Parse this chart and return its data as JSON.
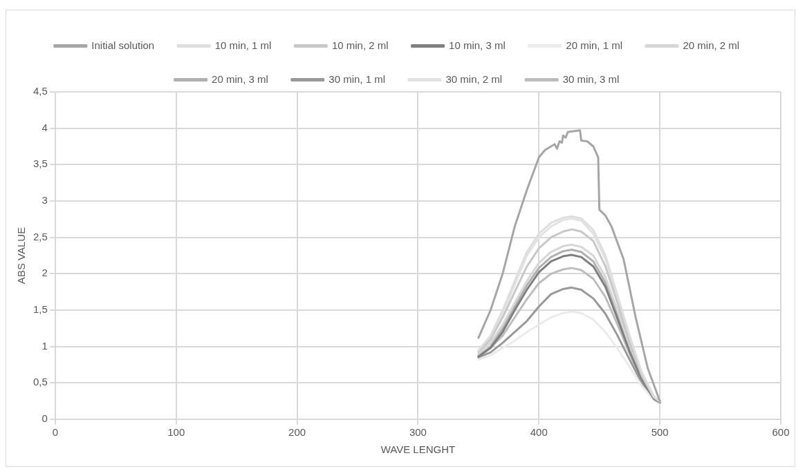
{
  "chart_data": {
    "type": "line",
    "xlabel": "WAVE LENGHT",
    "ylabel": "ABS VALUE",
    "x": [
      350,
      360,
      370,
      380,
      390,
      400,
      410,
      420,
      427,
      435,
      445,
      455,
      465,
      475,
      485,
      495,
      500
    ],
    "xlim": [
      0,
      600
    ],
    "xticks": [
      0,
      100,
      200,
      300,
      400,
      500,
      600
    ],
    "ylim": [
      0,
      4.5
    ],
    "yticks": [
      0,
      {
        "value": 0.5,
        "label": "0,5"
      },
      1,
      {
        "value": 1.5,
        "label": "1,5"
      },
      2,
      {
        "value": 2.5,
        "label": "2,5"
      },
      3,
      {
        "value": 3.5,
        "label": "3,5"
      },
      4,
      {
        "value": 4.5,
        "label": "4,5"
      }
    ],
    "grid": true,
    "legend": "top",
    "marker": "none",
    "line_style": "solid",
    "series": [
      {
        "name": "Initial solution",
        "color": "#a6a6a6",
        "x": [
          350,
          360,
          370,
          380,
          390,
          400,
          405,
          410,
          413,
          415,
          417,
          419,
          420,
          422,
          424,
          434,
          435,
          440,
          445,
          449,
          450,
          455,
          460,
          470,
          480,
          490,
          500
        ],
        "values": [
          1.12,
          1.5,
          2.0,
          2.65,
          3.15,
          3.6,
          3.7,
          3.75,
          3.78,
          3.72,
          3.82,
          3.8,
          3.9,
          3.87,
          3.95,
          3.97,
          3.83,
          3.82,
          3.75,
          3.6,
          2.88,
          2.8,
          2.65,
          2.2,
          1.4,
          0.7,
          0.25
        ]
      },
      {
        "name": "10 min, 1 ml",
        "color": "#dedede",
        "values": [
          0.95,
          1.15,
          1.5,
          1.9,
          2.3,
          2.55,
          2.7,
          2.77,
          2.79,
          2.76,
          2.6,
          2.25,
          1.7,
          1.15,
          0.65,
          0.32,
          0.25
        ]
      },
      {
        "name": "10 min, 2 ml",
        "color": "#c8c8c8",
        "values": [
          0.93,
          1.1,
          1.4,
          1.75,
          2.1,
          2.35,
          2.5,
          2.58,
          2.61,
          2.58,
          2.45,
          2.1,
          1.6,
          1.05,
          0.6,
          0.3,
          0.24
        ]
      },
      {
        "name": "10 min, 3 ml",
        "color": "#7f7f7f",
        "values": [
          0.86,
          0.98,
          1.2,
          1.5,
          1.78,
          2.02,
          2.17,
          2.24,
          2.26,
          2.23,
          2.1,
          1.82,
          1.38,
          0.93,
          0.55,
          0.28,
          0.23
        ]
      },
      {
        "name": "20 min, 1 ml",
        "color": "#ebebeb",
        "values": [
          0.82,
          0.88,
          0.98,
          1.08,
          1.2,
          1.3,
          1.4,
          1.46,
          1.48,
          1.46,
          1.37,
          1.2,
          0.97,
          0.72,
          0.46,
          0.26,
          0.21
        ]
      },
      {
        "name": "20 min, 2 ml",
        "color": "#d6d6d6",
        "values": [
          0.9,
          1.05,
          1.3,
          1.6,
          1.9,
          2.15,
          2.3,
          2.38,
          2.4,
          2.37,
          2.25,
          1.95,
          1.5,
          1.0,
          0.58,
          0.3,
          0.25
        ]
      },
      {
        "name": "20 min, 3 ml",
        "color": "#b0b0b0",
        "values": [
          0.87,
          1.0,
          1.25,
          1.55,
          1.84,
          2.08,
          2.23,
          2.31,
          2.33,
          2.3,
          2.17,
          1.88,
          1.43,
          0.96,
          0.56,
          0.29,
          0.24
        ]
      },
      {
        "name": "30 min, 1 ml",
        "color": "#999999",
        "values": [
          0.85,
          0.92,
          1.05,
          1.2,
          1.35,
          1.55,
          1.72,
          1.79,
          1.81,
          1.78,
          1.66,
          1.45,
          1.15,
          0.82,
          0.5,
          0.27,
          0.22
        ]
      },
      {
        "name": "30 min, 2 ml",
        "color": "#e2e2e2",
        "values": [
          0.9,
          1.1,
          1.45,
          1.85,
          2.25,
          2.5,
          2.65,
          2.74,
          2.76,
          2.73,
          2.55,
          2.2,
          1.65,
          1.1,
          0.62,
          0.3,
          0.24
        ]
      },
      {
        "name": "30 min, 3 ml",
        "color": "#bdbdbd",
        "values": [
          0.88,
          0.98,
          1.15,
          1.4,
          1.65,
          1.87,
          2.0,
          2.06,
          2.08,
          2.05,
          1.93,
          1.68,
          1.3,
          0.9,
          0.53,
          0.28,
          0.23
        ]
      }
    ]
  }
}
